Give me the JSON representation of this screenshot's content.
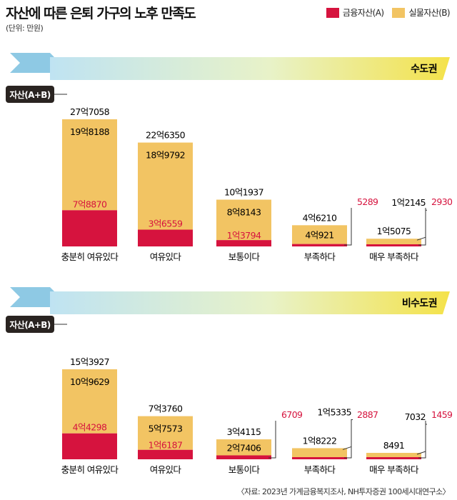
{
  "title": "자산에 따른 은퇴 가구의 노후 만족도",
  "unit": "(단위: 만원)",
  "legend": {
    "financial": {
      "label": "금융자산(A)",
      "color": "#d6133e"
    },
    "real": {
      "label": "실물자산(B)",
      "color": "#f2c463"
    }
  },
  "source": "〈자료: 2023년 가계금융복지조사, NH투자증권 100세시대연구소〉",
  "chart_data": [
    {
      "type": "bar",
      "stacked": true,
      "region": "수도권",
      "total_label": "자산(A+B)",
      "categories": [
        "충분히 여유있다",
        "여유있다",
        "보통이다",
        "부족하다",
        "매우 부족하다"
      ],
      "financial": [
        78870,
        36559,
        13794,
        5289,
        2930
      ],
      "real": [
        198188,
        189792,
        88143,
        40921,
        12145
      ],
      "total": [
        277058,
        226350,
        101937,
        46210,
        15075
      ],
      "financial_labels": [
        "7억8870",
        "3억6559",
        "1억3794",
        "5289",
        "2930"
      ],
      "real_labels": [
        "19억8188",
        "18억9792",
        "8억8143",
        "4억921",
        "1억2145"
      ],
      "total_labels": [
        "27억7058",
        "22억6350",
        "10억1937",
        "4억6210",
        "1억5075"
      ]
    },
    {
      "type": "bar",
      "stacked": true,
      "region": "비수도권",
      "total_label": "자산(A+B)",
      "categories": [
        "충분히 여유있다",
        "여유있다",
        "보통이다",
        "부족하다",
        "매우 부족하다"
      ],
      "financial": [
        44298,
        16187,
        6709,
        2887,
        1459
      ],
      "real": [
        109629,
        57573,
        27406,
        15335,
        7032
      ],
      "total": [
        153927,
        73760,
        34115,
        18222,
        8491
      ],
      "financial_labels": [
        "4억4298",
        "1억6187",
        "6709",
        "2887",
        "1459"
      ],
      "real_labels": [
        "10억9629",
        "5억7573",
        "2억7406",
        "1억5335",
        "7032"
      ],
      "total_labels": [
        "15억3927",
        "7억3760",
        "3억4115",
        "1억8222",
        "8491"
      ]
    }
  ]
}
